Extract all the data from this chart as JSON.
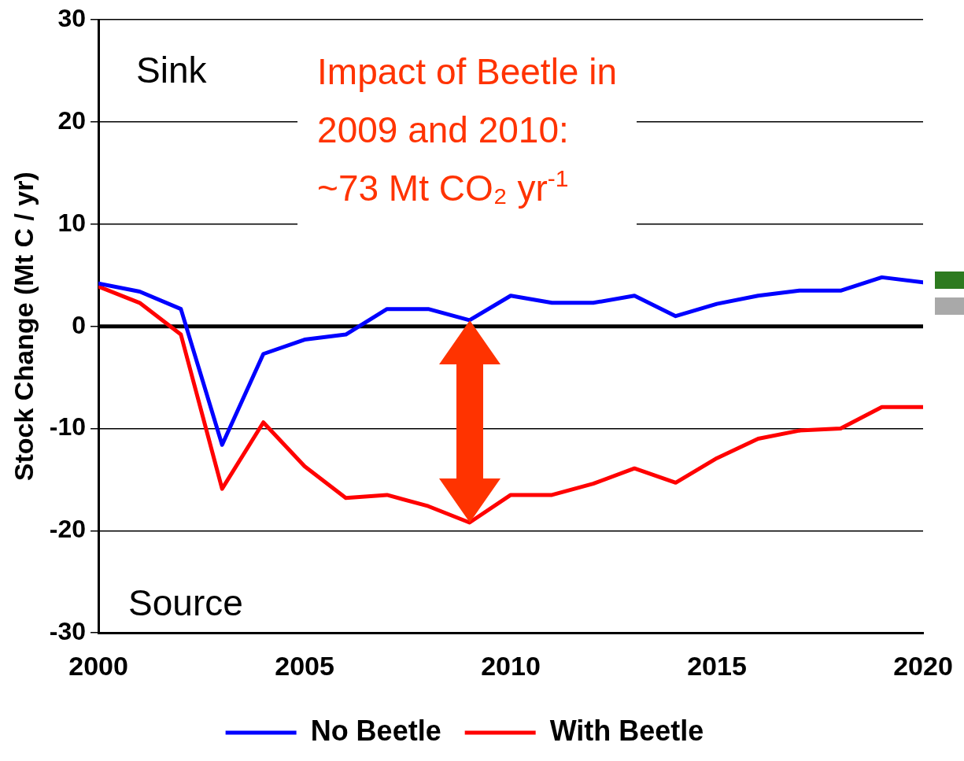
{
  "chart_data": {
    "type": "line",
    "x": [
      2000,
      2001,
      2002,
      2003,
      2004,
      2005,
      2006,
      2007,
      2008,
      2009,
      2010,
      2011,
      2012,
      2013,
      2014,
      2015,
      2016,
      2017,
      2018,
      2019,
      2020
    ],
    "series": [
      {
        "name": "No Beetle",
        "color": "#0000ff",
        "values": [
          4.2,
          3.4,
          1.7,
          -11.6,
          -2.7,
          -1.3,
          -0.8,
          1.7,
          1.7,
          0.6,
          3.0,
          2.3,
          2.3,
          3.0,
          1.0,
          2.2,
          3.0,
          3.5,
          3.5,
          4.8,
          4.3
        ]
      },
      {
        "name": "With Beetle",
        "color": "#ff0000",
        "values": [
          3.9,
          2.3,
          -0.8,
          -15.9,
          -9.4,
          -13.7,
          -16.8,
          -16.5,
          -17.6,
          -19.2,
          -16.5,
          -16.5,
          -15.4,
          -13.9,
          -15.3,
          -12.9,
          -11.0,
          -10.2,
          -10.0,
          -7.9,
          -7.9
        ]
      }
    ],
    "ylabel": "Stock Change (Mt C / yr)",
    "xlim": [
      2000,
      2020
    ],
    "xticks": [
      2000,
      2005,
      2010,
      2015,
      2020
    ],
    "ylim": [
      -30,
      30
    ],
    "yticks": [
      -30,
      -20,
      -10,
      0,
      10,
      20,
      30
    ],
    "ref_lines": [
      {
        "axis": "y",
        "value": 0,
        "color": "#000000"
      }
    ],
    "annotations": [
      "Sink",
      "Source",
      "Impact of Beetle in 2009 and 2010: ~73 Mt CO₂ yr$^{-1}$"
    ],
    "grid": "y",
    "legend": "bottom",
    "marker": "none",
    "line_style": "solid"
  }
}
